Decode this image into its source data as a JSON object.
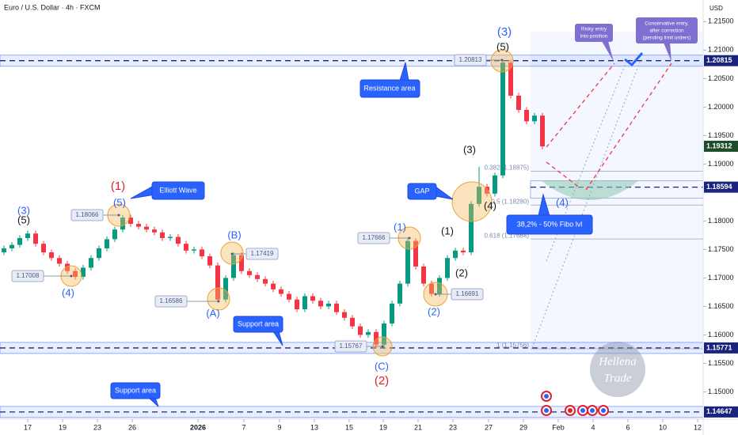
{
  "chart_data": {
    "type": "candlestick",
    "title": "Euro / U.S. Dollar · 4h · FXCM",
    "currency": "USD",
    "up_color": "#089981",
    "down_color": "#f23645",
    "xlim": [
      -0.5,
      88.5
    ],
    "xticks": [
      {
        "value": 3,
        "label": "17"
      },
      {
        "value": 7.4,
        "label": "19"
      },
      {
        "value": 11.8,
        "label": "23"
      },
      {
        "value": 16.2,
        "label": "26"
      },
      {
        "value": 24.5,
        "label": "2026"
      },
      {
        "value": 30.3,
        "label": "7"
      },
      {
        "value": 34.8,
        "label": "9"
      },
      {
        "value": 39.2,
        "label": "13"
      },
      {
        "value": 43.6,
        "label": "15"
      },
      {
        "value": 47.9,
        "label": "19"
      },
      {
        "value": 52.3,
        "label": "21"
      },
      {
        "value": 56.7,
        "label": "23"
      },
      {
        "value": 61.2,
        "label": "27"
      },
      {
        "value": 65.6,
        "label": "29"
      },
      {
        "value": 70,
        "label": "Feb"
      },
      {
        "value": 74.4,
        "label": "4"
      },
      {
        "value": 78.8,
        "label": "6"
      },
      {
        "value": 83.2,
        "label": "10"
      },
      {
        "value": 87.6,
        "label": "12"
      }
    ],
    "ylim": [
      1.1452,
      1.2188
    ],
    "yticks": [
      {
        "value": 1.215,
        "label": "1.21500"
      },
      {
        "value": 1.21,
        "label": "1.21000"
      },
      {
        "value": 1.205,
        "label": "1.20500"
      },
      {
        "value": 1.2,
        "label": "1.20000"
      },
      {
        "value": 1.195,
        "label": "1.19500"
      },
      {
        "value": 1.19,
        "label": "1.19000"
      },
      {
        "value": 1.18,
        "label": "1.18000"
      },
      {
        "value": 1.175,
        "label": "1.17500"
      },
      {
        "value": 1.17,
        "label": "1.17000"
      },
      {
        "value": 1.165,
        "label": "1.16500"
      },
      {
        "value": 1.16,
        "label": "1.16000"
      },
      {
        "value": 1.155,
        "label": "1.15500"
      },
      {
        "value": 1.15,
        "label": "1.15000"
      }
    ],
    "candles": [
      [
        1.1745,
        1.1757,
        1.174,
        1.1752
      ],
      [
        1.1752,
        1.1763,
        1.1747,
        1.1758
      ],
      [
        1.1758,
        1.1775,
        1.1753,
        1.177
      ],
      [
        1.177,
        1.1783,
        1.1765,
        1.1778
      ],
      [
        1.1778,
        1.1783,
        1.1755,
        1.176
      ],
      [
        1.176,
        1.1765,
        1.174,
        1.1745
      ],
      [
        1.1745,
        1.175,
        1.173,
        1.1735
      ],
      [
        1.1735,
        1.174,
        1.172,
        1.1725
      ],
      [
        1.1725,
        1.173,
        1.1707,
        1.1712
      ],
      [
        1.1712,
        1.1717,
        1.1697,
        1.1702
      ],
      [
        1.1702,
        1.1723,
        1.1697,
        1.1718
      ],
      [
        1.1718,
        1.174,
        1.1713,
        1.1735
      ],
      [
        1.1735,
        1.1757,
        1.173,
        1.1752
      ],
      [
        1.1752,
        1.1773,
        1.1747,
        1.1768
      ],
      [
        1.1768,
        1.179,
        1.1763,
        1.1785
      ],
      [
        1.1785,
        1.1811,
        1.178,
        1.1806
      ],
      [
        1.1806,
        1.1811,
        1.179,
        1.1795
      ],
      [
        1.1795,
        1.18,
        1.1785,
        1.179
      ],
      [
        1.179,
        1.1795,
        1.178,
        1.1785
      ],
      [
        1.1785,
        1.179,
        1.1775,
        1.178
      ],
      [
        1.178,
        1.1785,
        1.1765,
        1.177
      ],
      [
        1.177,
        1.1777,
        1.1765,
        1.1772
      ],
      [
        1.1772,
        1.1777,
        1.1755,
        1.176
      ],
      [
        1.176,
        1.1765,
        1.1743,
        1.1748
      ],
      [
        1.1748,
        1.1755,
        1.1743,
        1.175
      ],
      [
        1.175,
        1.1755,
        1.1733,
        1.1738
      ],
      [
        1.1738,
        1.1743,
        1.1717,
        1.1722
      ],
      [
        1.1722,
        1.1727,
        1.1657,
        1.1662
      ],
      [
        1.1662,
        1.1705,
        1.1657,
        1.17
      ],
      [
        1.17,
        1.1745,
        1.1695,
        1.174
      ],
      [
        1.174,
        1.1745,
        1.1707,
        1.1712
      ],
      [
        1.1712,
        1.1717,
        1.17,
        1.1705
      ],
      [
        1.1705,
        1.171,
        1.1693,
        1.1698
      ],
      [
        1.1698,
        1.1703,
        1.1685,
        1.169
      ],
      [
        1.169,
        1.1695,
        1.1675,
        1.168
      ],
      [
        1.168,
        1.1685,
        1.1667,
        1.1672
      ],
      [
        1.1672,
        1.1677,
        1.1657,
        1.1662
      ],
      [
        1.1662,
        1.1667,
        1.164,
        1.1645
      ],
      [
        1.1645,
        1.1673,
        1.164,
        1.1668
      ],
      [
        1.1668,
        1.1673,
        1.1655,
        1.166
      ],
      [
        1.166,
        1.1665,
        1.1645,
        1.165
      ],
      [
        1.165,
        1.166,
        1.1645,
        1.1655
      ],
      [
        1.1655,
        1.166,
        1.1635,
        1.164
      ],
      [
        1.164,
        1.1645,
        1.1625,
        1.163
      ],
      [
        1.163,
        1.1635,
        1.161,
        1.1615
      ],
      [
        1.1615,
        1.162,
        1.1595,
        1.16
      ],
      [
        1.16,
        1.161,
        1.1595,
        1.1605
      ],
      [
        1.1605,
        1.161,
        1.1578,
        1.1583
      ],
      [
        1.1583,
        1.1625,
        1.1578,
        1.162
      ],
      [
        1.162,
        1.166,
        1.1615,
        1.1655
      ],
      [
        1.1655,
        1.1695,
        1.165,
        1.169
      ],
      [
        1.169,
        1.177,
        1.1685,
        1.1765
      ],
      [
        1.1765,
        1.177,
        1.1715,
        1.172
      ],
      [
        1.172,
        1.1725,
        1.1685,
        1.169
      ],
      [
        1.169,
        1.1695,
        1.1667,
        1.1672
      ],
      [
        1.1672,
        1.1705,
        1.1667,
        1.17
      ],
      [
        1.17,
        1.174,
        1.1695,
        1.1735
      ],
      [
        1.1735,
        1.1753,
        1.173,
        1.1748
      ],
      [
        1.1748,
        1.1753,
        1.174,
        1.1745
      ],
      [
        1.1745,
        1.1835,
        1.174,
        1.183
      ],
      [
        1.183,
        1.1895,
        1.1825,
        1.186
      ],
      [
        1.186,
        1.1865,
        1.1843,
        1.1848
      ],
      [
        1.1848,
        1.1885,
        1.1843,
        1.188
      ],
      [
        1.188,
        1.2083,
        1.1875,
        1.2078
      ],
      [
        1.2078,
        1.2083,
        1.2015,
        1.202
      ],
      [
        1.202,
        1.2025,
        1.199,
        1.1995
      ],
      [
        1.1995,
        1.2,
        1.197,
        1.1975
      ],
      [
        1.1975,
        1.199,
        1.197,
        1.1985
      ],
      [
        1.1985,
        1.199,
        1.1926,
        1.1931
      ]
    ],
    "levels": [
      {
        "value": 1.20815,
        "label": "1.20815"
      },
      {
        "value": 1.18594,
        "label": "1.18594"
      },
      {
        "value": 1.15771,
        "label": "1.15771"
      },
      {
        "value": 1.14647,
        "label": "1.14647"
      }
    ],
    "last_price": {
      "value": 1.19312,
      "label": "1.19312"
    },
    "fibs": [
      {
        "value": 1.18875,
        "label": "0.382 (1.18875)"
      },
      {
        "value": 1.1828,
        "label": "0.5 (1.18280)"
      },
      {
        "value": 1.17684,
        "label": "0.618 (1.17684)"
      },
      {
        "value": 1.15756,
        "label": "1 (1.15756)"
      }
    ],
    "wave_labels": [
      {
        "text": "(3)",
        "color": "#2962ff"
      },
      {
        "text": "(5)",
        "color": "#131722"
      },
      {
        "text": "(4)",
        "color": "#2962ff"
      },
      {
        "text": "(1)",
        "color": "#e0202a"
      },
      {
        "text": "(5)",
        "color": "#2962ff"
      },
      {
        "text": "(B)",
        "color": "#2962ff"
      },
      {
        "text": "(A)",
        "color": "#2962ff"
      },
      {
        "text": "(C)",
        "color": "#2962ff"
      },
      {
        "text": "(2)",
        "color": "#e0202a"
      },
      {
        "text": "(1)",
        "color": "#2962ff"
      },
      {
        "text": "(2)",
        "color": "#2962ff"
      },
      {
        "text": "(1)",
        "color": "#131722"
      },
      {
        "text": "(2)",
        "color": "#131722"
      },
      {
        "text": "(3)",
        "color": "#131722"
      },
      {
        "text": "(4)",
        "color": "#131722"
      },
      {
        "text": "(5)",
        "color": "#131722"
      },
      {
        "text": "(3)",
        "color": "#2962ff"
      },
      {
        "text": "(4)",
        "color": "#2962ff"
      }
    ],
    "price_notes": [
      "1.17008",
      "1.18066",
      "1.16586",
      "1.17419",
      "1.15767",
      "1.17666",
      "1.16691",
      "1.20813"
    ],
    "callouts": {
      "elliott": "Elliott Wave",
      "resistance": "Resistance area",
      "support_1": "Support area",
      "support_2": "Support area",
      "gap": "GAP",
      "fibo": "38,2% - 50% Fibo lvl",
      "risky": [
        "Risky entry",
        "into position"
      ],
      "conservative": [
        "Conservative entry,",
        "after correction",
        "(pending limit orders)"
      ]
    },
    "watermark": [
      "Hellena",
      "Trade"
    ]
  }
}
